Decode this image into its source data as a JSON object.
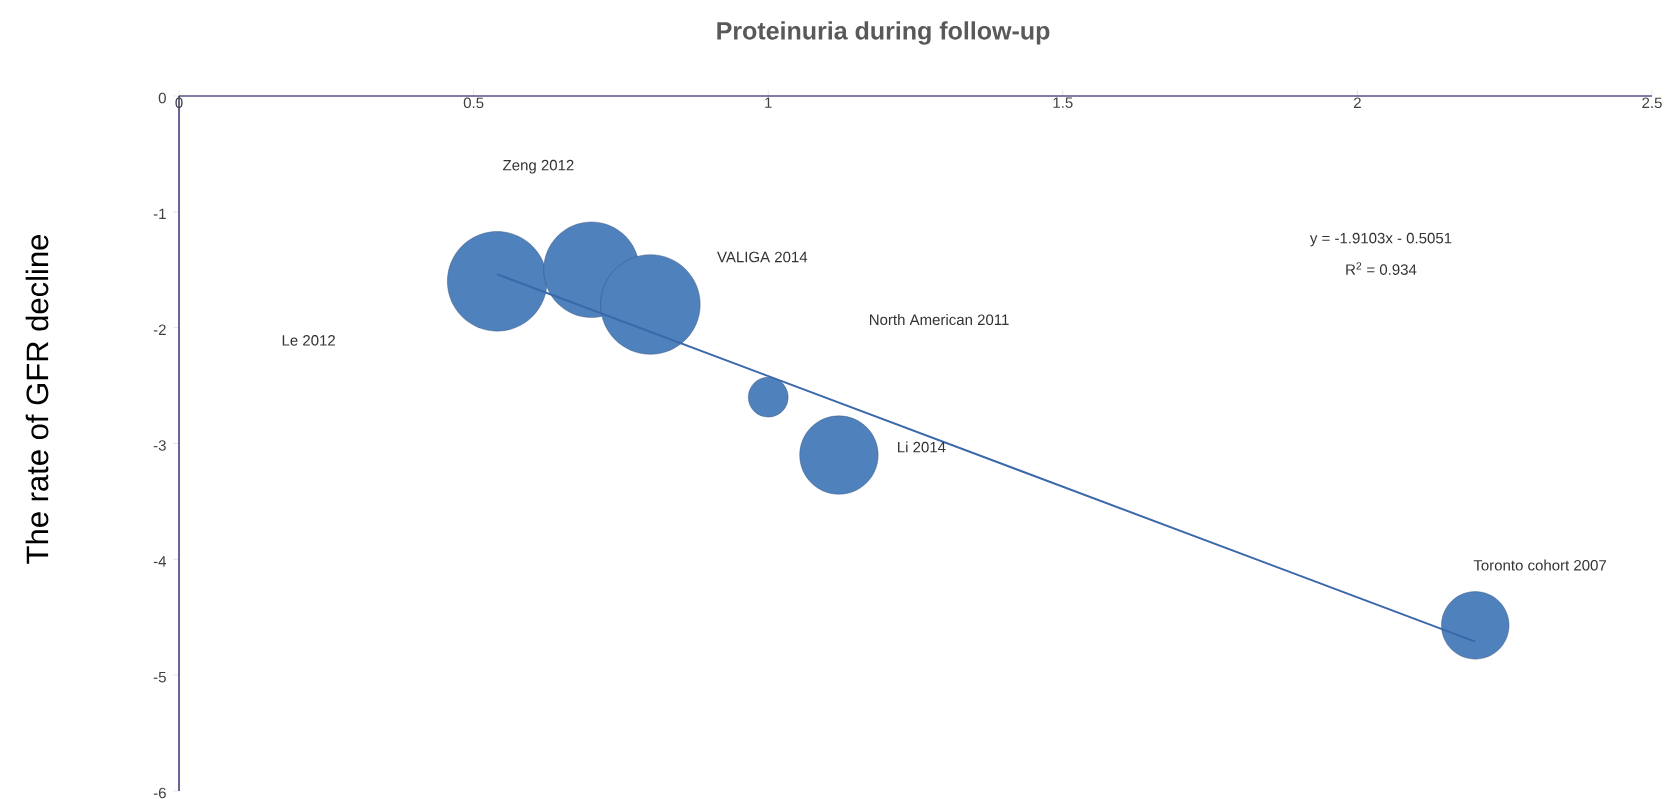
{
  "chart_data": {
    "type": "bubble",
    "title": "Proteinuria during follow-up",
    "ylabel": "The rate of GFR decline",
    "series": [
      {
        "marker": "circle",
        "color": "#4f81bd",
        "x": [
          0.54,
          0.7,
          0.8,
          1.0,
          1.12,
          2.2
        ],
        "values": [
          -1.6,
          -1.5,
          -1.8,
          -2.6,
          -3.1,
          -4.57
        ],
        "sizes": [
          1,
          0.92,
          1,
          0.16,
          0.62,
          0.46
        ]
      },
      {
        "type": "line",
        "color": "#3a68a8",
        "x": [
          0.54,
          2.2
        ],
        "values": [
          -1.54,
          -4.71
        ]
      }
    ],
    "annotations": [
      "Zeng 2012",
      "VALIGA 2014",
      "Le 2012",
      "North American 2011",
      "Li 2014",
      "Toronto cohort 2007",
      "y = -1.9103x - 0.5051",
      "R$^{2}$ = 0.934"
    ],
    "xlim": [
      0,
      2.5
    ],
    "xticks": [
      0,
      0.5,
      1,
      1.5,
      2,
      2.5
    ],
    "ylim": [
      -6,
      0
    ],
    "yticks": [
      -6,
      -5,
      -4,
      -3,
      -2,
      -1,
      0
    ],
    "grid": false
  }
}
